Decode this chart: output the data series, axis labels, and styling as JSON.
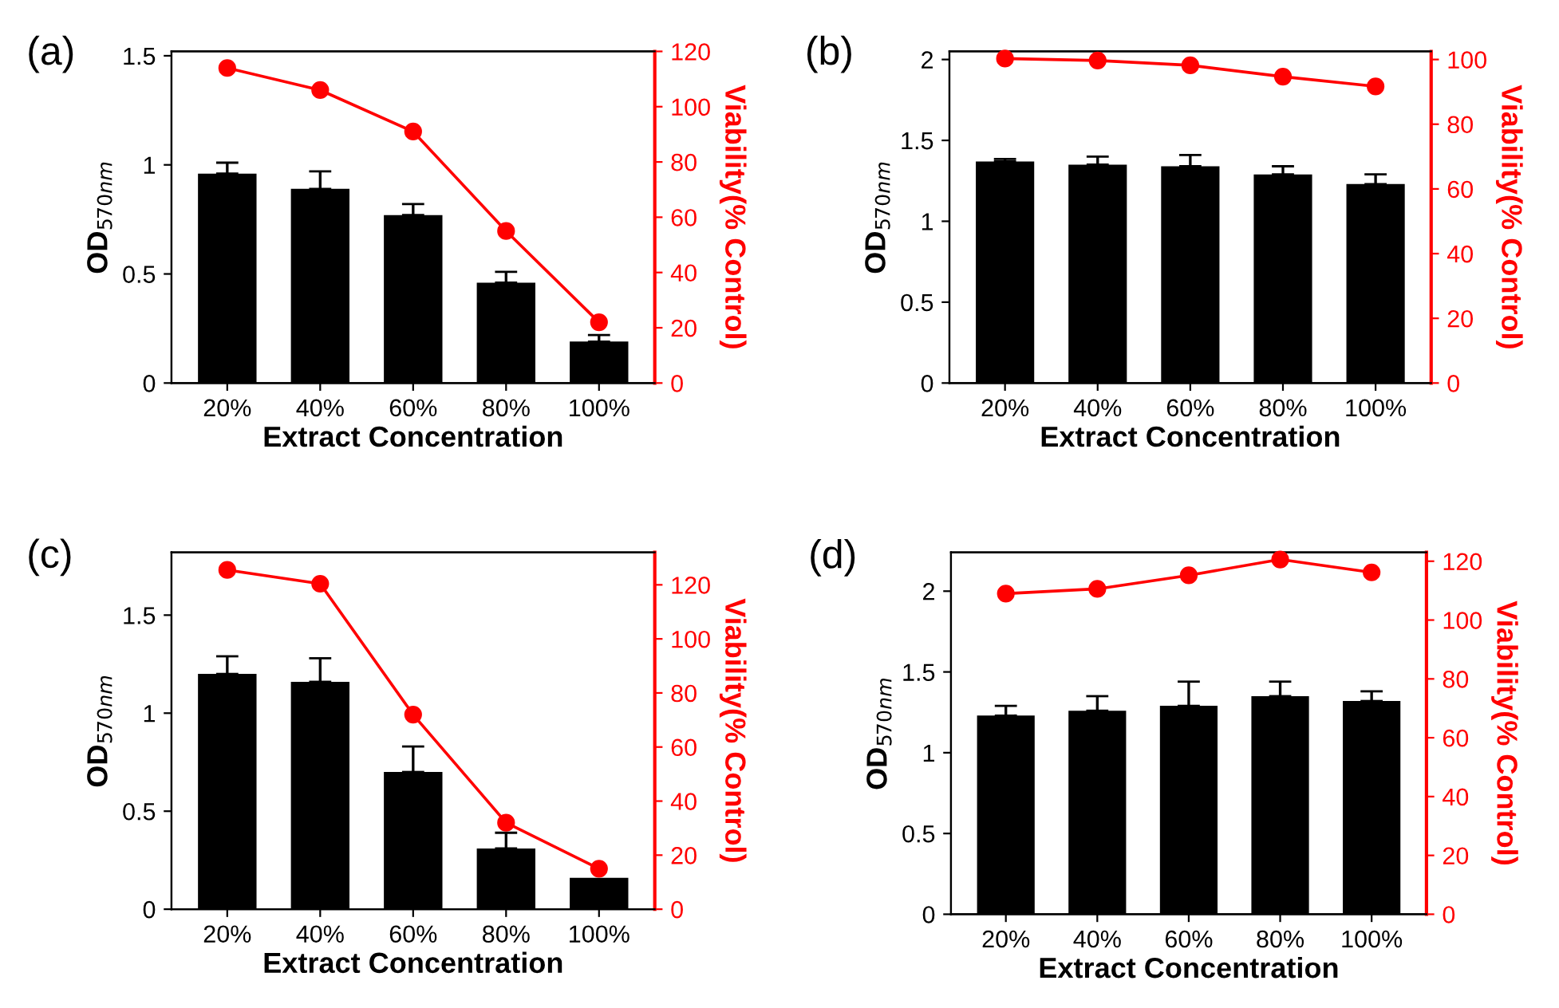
{
  "chart_data": [
    {
      "type": "bar",
      "title": "(a)",
      "xlabel": "Extract Concentration",
      "ylabel": "OD$_{570nm}$",
      "y2label": "Viability(% Control)",
      "categories": [
        "20%",
        "40%",
        "60%",
        "80%",
        "100%"
      ],
      "ylim": [
        0,
        1.52
      ],
      "yticks": [
        0,
        0.5,
        1,
        1.5
      ],
      "y2lim": [
        0,
        120
      ],
      "y2ticks": [
        0,
        20,
        40,
        60,
        80,
        100,
        120
      ],
      "grid": false,
      "legend": false,
      "series": [
        {
          "color": "#000000",
          "values": [
            0.96,
            0.89,
            0.77,
            0.46,
            0.19
          ],
          "errors": [
            0.05,
            0.08,
            0.05,
            0.05,
            0.03
          ]
        },
        {
          "type": "line",
          "axis": "y2",
          "color": "#ff0000",
          "marker": "circle",
          "values": [
            114,
            106,
            91,
            55,
            22
          ]
        }
      ]
    },
    {
      "type": "bar",
      "title": "(b)",
      "xlabel": "Extract Concentration",
      "ylabel": "OD$_{570nm}$",
      "y2label": "Viability(% Control)",
      "categories": [
        "20%",
        "40%",
        "60%",
        "80%",
        "100%"
      ],
      "ylim": [
        0,
        2.05
      ],
      "yticks": [
        0,
        0.5,
        1,
        1.5,
        2
      ],
      "y2lim": [
        0,
        102.5
      ],
      "y2ticks": [
        0,
        20,
        40,
        60,
        80,
        100
      ],
      "grid": false,
      "legend": false,
      "series": [
        {
          "color": "#000000",
          "values": [
            1.37,
            1.35,
            1.34,
            1.29,
            1.23
          ],
          "errors": [
            0.015,
            0.05,
            0.07,
            0.05,
            0.06
          ]
        },
        {
          "type": "line",
          "axis": "y2",
          "color": "#ff0000",
          "marker": "circle",
          "values": [
            100.3,
            99.7,
            98.2,
            94.7,
            91.7
          ]
        }
      ]
    },
    {
      "type": "bar",
      "title": "(c)",
      "xlabel": "Extract Concentration",
      "ylabel": "OD$_{570nm}$",
      "y2label": "Viability(% Control)",
      "categories": [
        "20%",
        "40%",
        "60%",
        "80%",
        "100%"
      ],
      "ylim": [
        0,
        1.82
      ],
      "yticks": [
        0,
        0.5,
        1,
        1.5
      ],
      "y2lim": [
        0,
        132
      ],
      "y2ticks": [
        0,
        20,
        40,
        60,
        80,
        100,
        120
      ],
      "grid": false,
      "legend": false,
      "series": [
        {
          "color": "#000000",
          "values": [
            1.2,
            1.16,
            0.7,
            0.31,
            0.16
          ],
          "errors": [
            0.09,
            0.12,
            0.13,
            0.08,
            null
          ]
        },
        {
          "type": "line",
          "axis": "y2",
          "color": "#ff0000",
          "marker": "circle",
          "values": [
            125.5,
            120.4,
            72,
            32,
            15
          ]
        }
      ]
    },
    {
      "type": "bar",
      "title": "(d)",
      "xlabel": "Extract Concentration",
      "ylabel": "OD$_{570nm}$",
      "y2label": "Viability(% Control)",
      "categories": [
        "20%",
        "40%",
        "60%",
        "80%",
        "100%"
      ],
      "ylim": [
        0,
        2.24
      ],
      "yticks": [
        0,
        0.5,
        1,
        1.5,
        2
      ],
      "y2lim": [
        0,
        123
      ],
      "y2ticks": [
        0,
        20,
        40,
        60,
        80,
        100,
        120
      ],
      "grid": false,
      "legend": false,
      "series": [
        {
          "color": "#000000",
          "values": [
            1.23,
            1.26,
            1.29,
            1.35,
            1.32
          ],
          "errors": [
            0.06,
            0.09,
            0.15,
            0.09,
            0.06
          ]
        },
        {
          "type": "line",
          "axis": "y2",
          "color": "#ff0000",
          "marker": "circle",
          "values": [
            109,
            110.6,
            115.2,
            120.6,
            116.2
          ]
        }
      ]
    }
  ]
}
